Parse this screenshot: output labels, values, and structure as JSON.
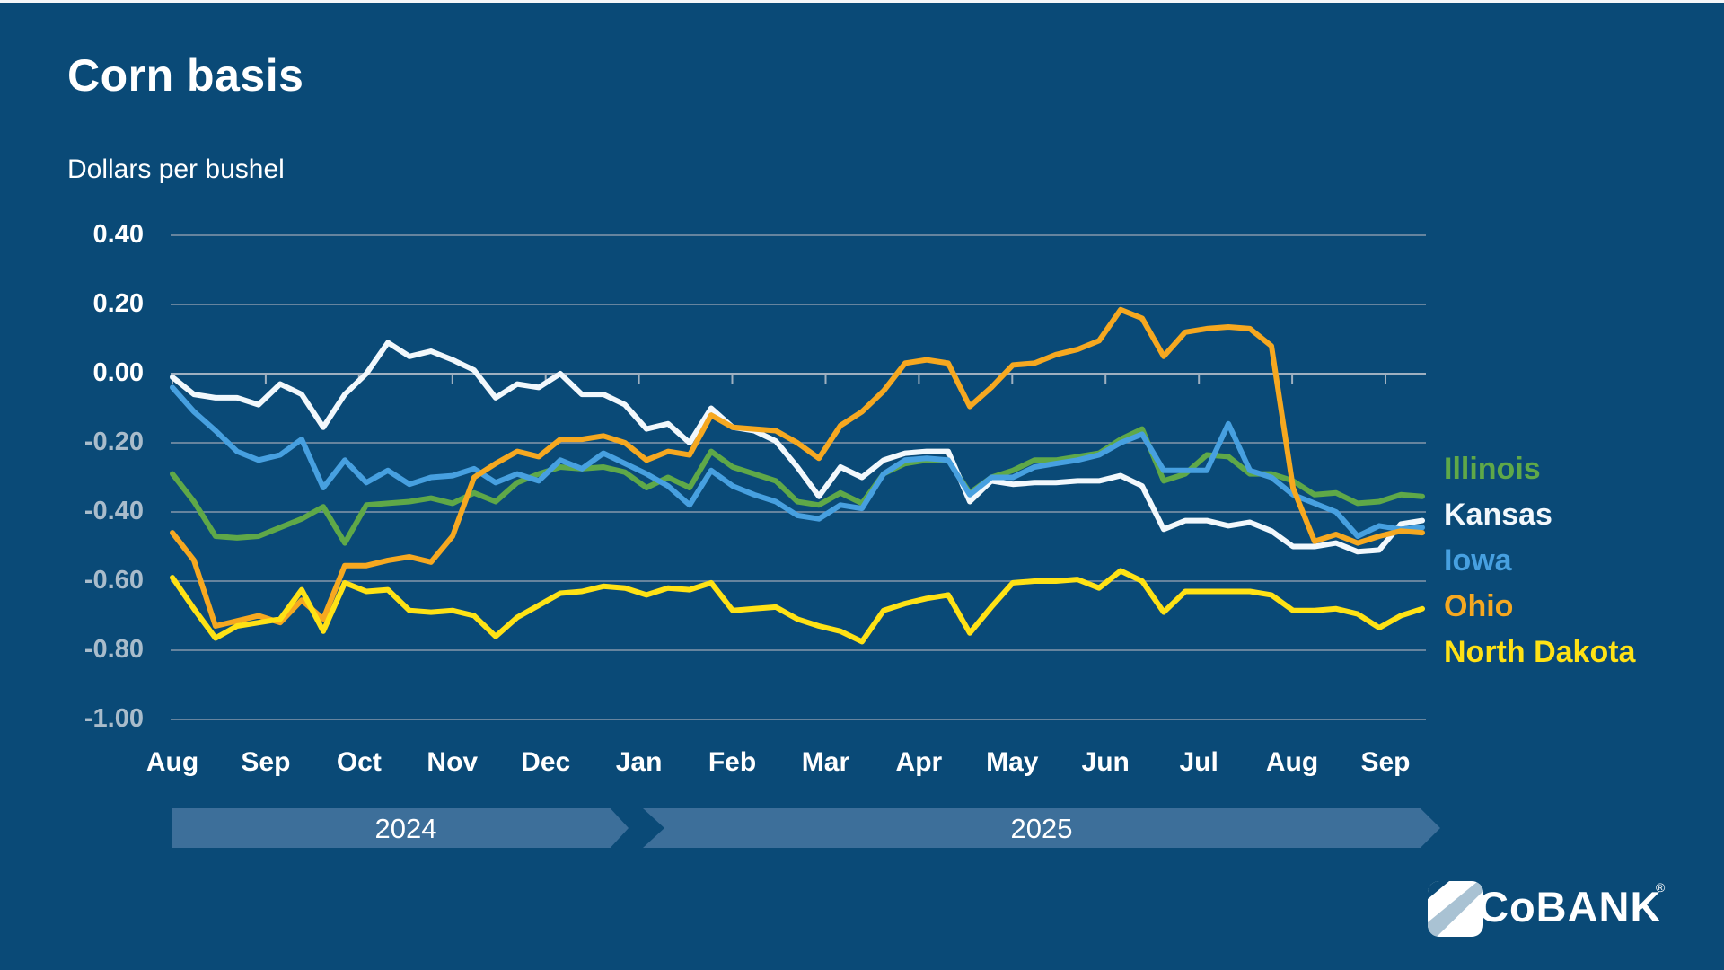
{
  "title": "Corn basis",
  "subtitle": "Dollars per bushel",
  "colors": {
    "background": "#0a4a77",
    "gridline": "#8598ab",
    "zero_line": "#9fb0c0",
    "band": "#3d6f9a",
    "illinois": "#5fa848",
    "kansas": "#f2f8fc",
    "iowa": "#47a0e0",
    "ohio": "#f6a820",
    "north_dakota": "#ffe215",
    "logo_light_blue": "#a9c2d3"
  },
  "legend": [
    {
      "label": "Illinois",
      "color": "illinois"
    },
    {
      "label": "Kansas",
      "color": "kansas"
    },
    {
      "label": "Iowa",
      "color": "iowa"
    },
    {
      "label": "Ohio",
      "color": "ohio"
    },
    {
      "label": "North Dakota",
      "color": "north_dakota"
    }
  ],
  "timeline": {
    "year_2024": "2024",
    "year_2025": "2025"
  },
  "logo": {
    "text": "CoBANK",
    "reg": "®"
  },
  "chart_data": {
    "type": "line",
    "title": "Corn basis",
    "ylabel": "Dollars per bushel",
    "ylim": [
      -1.0,
      0.4
    ],
    "grid": true,
    "legend_position": "right",
    "x_axis": {
      "labels": [
        "Aug",
        "Sep",
        "Oct",
        "Nov",
        "Dec",
        "Jan",
        "Feb",
        "Mar",
        "Apr",
        "May",
        "Jun",
        "Jul",
        "Aug",
        "Sep"
      ],
      "year_groups": [
        {
          "label": "2024",
          "months": [
            "Aug",
            "Sep",
            "Oct",
            "Nov",
            "Dec"
          ]
        },
        {
          "label": "2025",
          "months": [
            "Jan",
            "Feb",
            "Mar",
            "Apr",
            "May",
            "Jun",
            "Jul",
            "Aug",
            "Sep"
          ]
        }
      ]
    },
    "y_axis": {
      "ticks": [
        0.4,
        0.2,
        0.0,
        -0.2,
        -0.4,
        -0.6,
        -0.8,
        -1.0
      ],
      "tick_labels": [
        "0.40",
        "0.20",
        "0.00",
        "-0.20",
        "-0.40",
        "-0.60",
        "-0.80",
        "-1.00"
      ]
    },
    "frequency": "weekly",
    "series": [
      {
        "name": "Illinois",
        "color": "illinois",
        "values": [
          -0.29,
          -0.37,
          -0.47,
          -0.475,
          -0.47,
          -0.445,
          -0.42,
          -0.385,
          -0.49,
          -0.38,
          -0.375,
          -0.37,
          -0.36,
          -0.375,
          -0.345,
          -0.37,
          -0.315,
          -0.29,
          -0.27,
          -0.275,
          -0.27,
          -0.285,
          -0.33,
          -0.3,
          -0.33,
          -0.225,
          -0.27,
          -0.29,
          -0.31,
          -0.37,
          -0.38,
          -0.345,
          -0.375,
          -0.29,
          -0.26,
          -0.25,
          -0.25,
          -0.345,
          -0.3,
          -0.28,
          -0.25,
          -0.25,
          -0.24,
          -0.23,
          -0.19,
          -0.16,
          -0.31,
          -0.29,
          -0.235,
          -0.24,
          -0.29,
          -0.29,
          -0.31,
          -0.35,
          -0.345,
          -0.375,
          -0.37,
          -0.35,
          -0.355
        ]
      },
      {
        "name": "Kansas",
        "color": "kansas",
        "values": [
          -0.01,
          -0.06,
          -0.07,
          -0.07,
          -0.09,
          -0.03,
          -0.06,
          -0.155,
          -0.06,
          0.0,
          0.09,
          0.05,
          0.065,
          0.04,
          0.01,
          -0.07,
          -0.03,
          -0.04,
          0.0,
          -0.06,
          -0.06,
          -0.09,
          -0.16,
          -0.145,
          -0.2,
          -0.1,
          -0.155,
          -0.165,
          -0.195,
          -0.27,
          -0.355,
          -0.27,
          -0.3,
          -0.25,
          -0.23,
          -0.225,
          -0.225,
          -0.37,
          -0.31,
          -0.32,
          -0.315,
          -0.315,
          -0.31,
          -0.31,
          -0.295,
          -0.325,
          -0.45,
          -0.425,
          -0.425,
          -0.44,
          -0.43,
          -0.455,
          -0.5,
          -0.5,
          -0.49,
          -0.515,
          -0.51,
          -0.435,
          -0.425
        ]
      },
      {
        "name": "Iowa",
        "color": "iowa",
        "values": [
          -0.04,
          -0.11,
          -0.165,
          -0.225,
          -0.25,
          -0.235,
          -0.19,
          -0.33,
          -0.25,
          -0.315,
          -0.28,
          -0.32,
          -0.3,
          -0.295,
          -0.275,
          -0.315,
          -0.29,
          -0.31,
          -0.25,
          -0.275,
          -0.23,
          -0.26,
          -0.29,
          -0.325,
          -0.38,
          -0.28,
          -0.325,
          -0.35,
          -0.37,
          -0.41,
          -0.42,
          -0.38,
          -0.39,
          -0.29,
          -0.25,
          -0.245,
          -0.25,
          -0.35,
          -0.3,
          -0.3,
          -0.27,
          -0.26,
          -0.25,
          -0.235,
          -0.2,
          -0.175,
          -0.28,
          -0.28,
          -0.28,
          -0.145,
          -0.28,
          -0.3,
          -0.35,
          -0.375,
          -0.4,
          -0.47,
          -0.44,
          -0.45,
          -0.445
        ]
      },
      {
        "name": "Ohio",
        "color": "ohio",
        "values": [
          -0.46,
          -0.54,
          -0.73,
          -0.715,
          -0.7,
          -0.72,
          -0.655,
          -0.71,
          -0.555,
          -0.555,
          -0.54,
          -0.53,
          -0.545,
          -0.47,
          -0.3,
          -0.26,
          -0.225,
          -0.24,
          -0.19,
          -0.19,
          -0.18,
          -0.2,
          -0.25,
          -0.225,
          -0.235,
          -0.12,
          -0.155,
          -0.16,
          -0.165,
          -0.2,
          -0.245,
          -0.15,
          -0.11,
          -0.05,
          0.03,
          0.04,
          0.03,
          -0.095,
          -0.04,
          0.025,
          0.03,
          0.055,
          0.07,
          0.095,
          0.185,
          0.16,
          0.05,
          0.12,
          0.13,
          0.135,
          0.13,
          0.08,
          -0.33,
          -0.485,
          -0.465,
          -0.49,
          -0.47,
          -0.455,
          -0.46
        ]
      },
      {
        "name": "North Dakota",
        "color": "north_dakota",
        "values": [
          -0.59,
          -0.68,
          -0.765,
          -0.73,
          -0.72,
          -0.71,
          -0.625,
          -0.745,
          -0.605,
          -0.63,
          -0.625,
          -0.685,
          -0.69,
          -0.685,
          -0.7,
          -0.76,
          -0.705,
          -0.67,
          -0.635,
          -0.63,
          -0.615,
          -0.62,
          -0.64,
          -0.62,
          -0.625,
          -0.605,
          -0.685,
          -0.68,
          -0.675,
          -0.71,
          -0.73,
          -0.745,
          -0.775,
          -0.685,
          -0.665,
          -0.65,
          -0.64,
          -0.75,
          -0.675,
          -0.605,
          -0.6,
          -0.6,
          -0.595,
          -0.62,
          -0.57,
          -0.6,
          -0.69,
          -0.63,
          -0.63,
          -0.63,
          -0.63,
          -0.64,
          -0.685,
          -0.685,
          -0.68,
          -0.695,
          -0.735,
          -0.7,
          -0.68
        ]
      }
    ]
  }
}
